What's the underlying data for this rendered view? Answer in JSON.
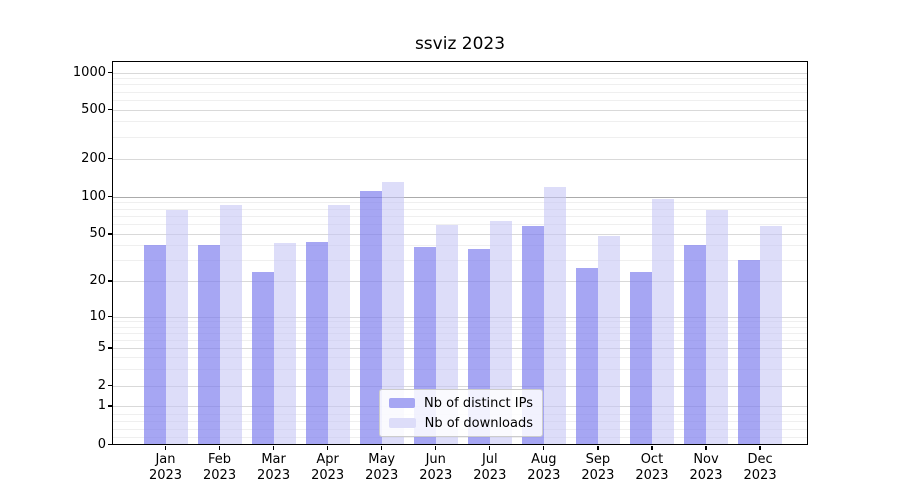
{
  "chart_data": {
    "type": "bar",
    "title": "ssviz 2023",
    "categories": [
      "Jan 2023",
      "Feb 2023",
      "Mar 2023",
      "Apr 2023",
      "May 2023",
      "Jun 2023",
      "Jul 2023",
      "Aug 2023",
      "Sep 2023",
      "Oct 2023",
      "Nov 2023",
      "Dec 2023"
    ],
    "months": [
      "Jan",
      "Feb",
      "Mar",
      "Apr",
      "May",
      "Jun",
      "Jul",
      "Aug",
      "Sep",
      "Oct",
      "Nov",
      "Dec"
    ],
    "year": "2023",
    "series": [
      {
        "name": "Nb of distinct IPs",
        "color": "#a6a6f3",
        "fill": "rgba(124,124,238,0.68)",
        "values": [
          40,
          40,
          24,
          43,
          111,
          39,
          37,
          58,
          26,
          24,
          40,
          30
        ]
      },
      {
        "name": "Nb of downloads",
        "color": "#ddddf9",
        "fill": "rgba(196,196,244,0.58)",
        "values": [
          78,
          86,
          42,
          85,
          130,
          59,
          64,
          118,
          48,
          95,
          78,
          58
        ]
      }
    ],
    "y_scale": "symlog",
    "y_ticks": [
      0,
      1,
      2,
      5,
      10,
      20,
      50,
      100,
      200,
      500,
      1000
    ],
    "y_minor_ticks": [
      0.2,
      0.4,
      0.6,
      0.8,
      3,
      4,
      6,
      7,
      8,
      9,
      30,
      40,
      60,
      70,
      80,
      90,
      300,
      400,
      600,
      700,
      800,
      900
    ],
    "ylim": [
      0,
      1200
    ],
    "grid": true,
    "emphasized_gridline": 100,
    "legend": {
      "position": "lower center",
      "labels": [
        "Nb of distinct IPs",
        "Nb of downloads"
      ]
    },
    "colors": {
      "grid_minor": "#efefef",
      "grid_major": "#d9d9d9",
      "grid_emphasis": "#ababab",
      "axis": "#000000"
    }
  }
}
